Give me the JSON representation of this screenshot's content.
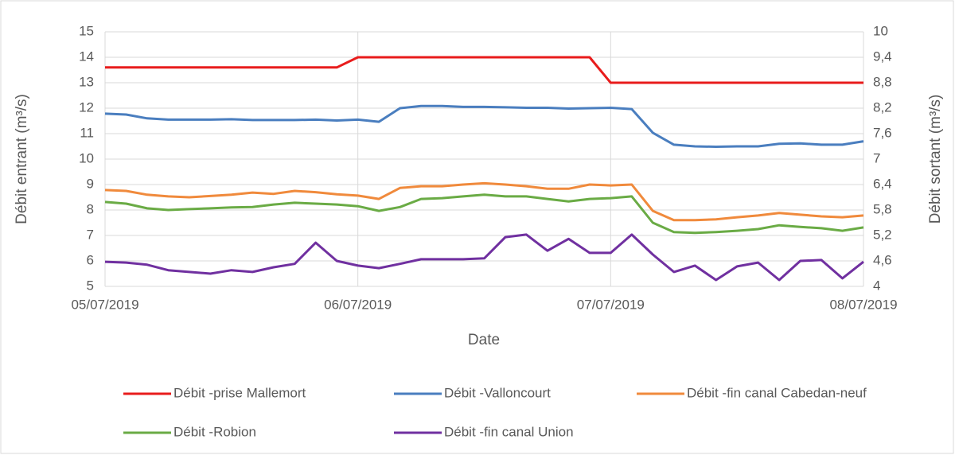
{
  "chart_data": {
    "type": "line",
    "x_label": "Date",
    "y_label": "Débit entrant (m³/s)",
    "y2_label": "Débit sortant (m³/s)",
    "categories": [
      "05/07/2019",
      null,
      null,
      null,
      null,
      null,
      null,
      null,
      null,
      null,
      null,
      null,
      "06/07/2019",
      null,
      null,
      null,
      null,
      null,
      null,
      null,
      null,
      null,
      null,
      null,
      "07/07/2019",
      null,
      null,
      null,
      null,
      null,
      null,
      null,
      null,
      null,
      null,
      null,
      "08/07/2019"
    ],
    "ylim": [
      5,
      15
    ],
    "yticks": [
      5,
      6,
      7,
      8,
      9,
      10,
      11,
      12,
      13,
      14,
      15
    ],
    "y2lim": [
      4,
      10
    ],
    "y2ticks": [
      4,
      {
        "value": 4.6,
        "label": "4,6"
      },
      {
        "value": 5.2,
        "label": "5,2"
      },
      {
        "value": 5.8,
        "label": "5,8"
      },
      {
        "value": 6.4,
        "label": "6,4"
      },
      7,
      {
        "value": 7.6,
        "label": "7,6"
      },
      {
        "value": 8.2,
        "label": "8,2"
      },
      {
        "value": 8.8,
        "label": "8,8"
      },
      {
        "value": 9.4,
        "label": "9,4"
      },
      10
    ],
    "grid": true,
    "legend": "bottom",
    "series": [
      {
        "name": "Débit -prise Mallemort",
        "color": "#e81c1c",
        "axis": "y",
        "values": [
          13.6,
          13.6,
          13.6,
          13.6,
          13.6,
          13.6,
          13.6,
          13.6,
          13.6,
          13.6,
          13.6,
          13.6,
          14,
          14,
          14,
          14,
          14,
          14,
          14,
          14,
          14,
          14,
          14,
          14,
          13,
          13,
          13,
          13,
          13,
          13,
          13,
          13,
          13,
          13,
          13,
          13,
          13
        ]
      },
      {
        "name": "Débit -Valloncourt",
        "color": "#4a7ebf",
        "axis": "y2",
        "values": [
          8.07,
          8.05,
          7.96,
          7.93,
          7.93,
          7.93,
          7.94,
          7.92,
          7.92,
          7.92,
          7.93,
          7.91,
          7.93,
          7.88,
          8.2,
          8.25,
          8.25,
          8.23,
          8.23,
          8.22,
          8.21,
          8.21,
          8.19,
          8.2,
          8.21,
          8.18,
          7.62,
          7.34,
          7.3,
          7.29,
          7.3,
          7.3,
          7.36,
          7.37,
          7.34,
          7.34,
          7.42
        ]
      },
      {
        "name": "Débit -fin canal Cabedan-neuf",
        "color": "#f08a3c",
        "axis": "y2",
        "values": [
          6.27,
          6.25,
          6.16,
          6.12,
          6.1,
          6.13,
          6.16,
          6.21,
          6.18,
          6.25,
          6.22,
          6.17,
          6.14,
          6.06,
          6.32,
          6.36,
          6.36,
          6.4,
          6.43,
          6.4,
          6.36,
          6.3,
          6.3,
          6.4,
          6.38,
          6.4,
          5.78,
          5.56,
          5.56,
          5.58,
          5.63,
          5.67,
          5.73,
          5.69,
          5.65,
          5.63,
          5.67
        ]
      },
      {
        "name": "Débit -Robion",
        "color": "#6aab45",
        "axis": "y2",
        "values": [
          5.99,
          5.95,
          5.84,
          5.8,
          5.82,
          5.84,
          5.86,
          5.87,
          5.93,
          5.97,
          5.95,
          5.93,
          5.89,
          5.78,
          5.87,
          6.06,
          6.08,
          6.12,
          6.16,
          6.12,
          6.12,
          6.06,
          6.0,
          6.06,
          6.08,
          6.12,
          5.5,
          5.28,
          5.26,
          5.28,
          5.31,
          5.35,
          5.44,
          5.4,
          5.37,
          5.31,
          5.39
        ]
      },
      {
        "name": "Débit -fin canal Union",
        "color": "#7030a0",
        "axis": "y2",
        "values": [
          4.58,
          4.56,
          4.51,
          4.38,
          4.34,
          4.3,
          4.38,
          4.34,
          4.45,
          4.53,
          5.03,
          4.6,
          4.49,
          4.43,
          4.53,
          4.64,
          4.64,
          4.64,
          4.66,
          5.16,
          5.22,
          4.84,
          5.12,
          4.79,
          4.79,
          5.22,
          4.75,
          4.34,
          4.49,
          4.15,
          4.47,
          4.56,
          4.15,
          4.6,
          4.62,
          4.19,
          4.58
        ]
      }
    ]
  }
}
